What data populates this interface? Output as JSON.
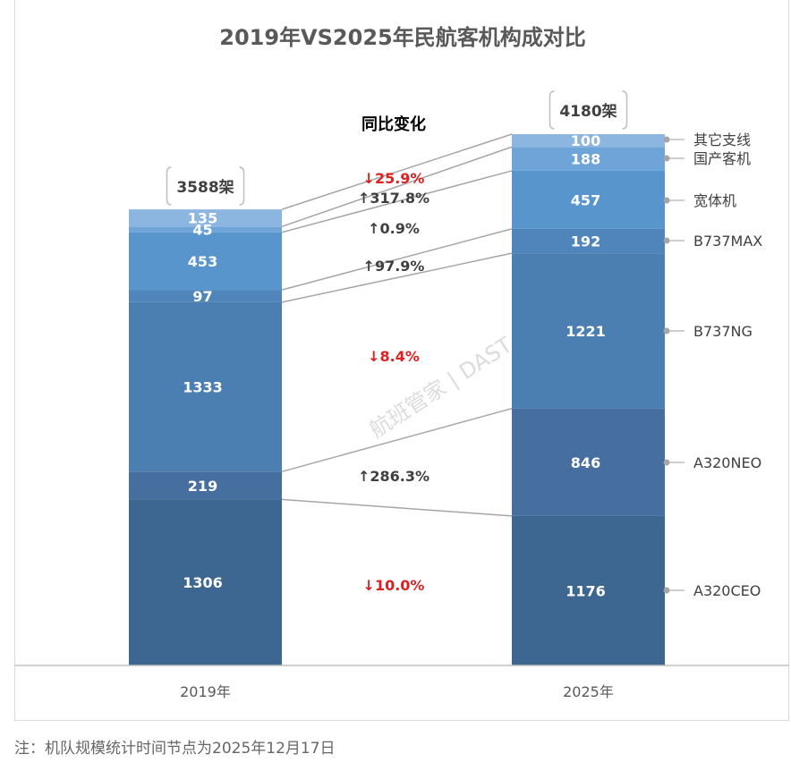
{
  "chart_data": {
    "type": "bar",
    "stacked": true,
    "title": "2019年VS2025年民航客机构成对比",
    "categories": [
      "2019年",
      "2025年"
    ],
    "series": [
      {
        "name": "A320CEO",
        "values": [
          1306,
          1176
        ],
        "change": "↓10.0%",
        "direction": "down"
      },
      {
        "name": "A320NEO",
        "values": [
          219,
          846
        ],
        "change": "↑286.3%",
        "direction": "up"
      },
      {
        "name": "B737NG",
        "values": [
          1333,
          1221
        ],
        "change": "↓8.4%",
        "direction": "down"
      },
      {
        "name": "B737MAX",
        "values": [
          97,
          192
        ],
        "change": "↑97.9%",
        "direction": "up"
      },
      {
        "name": "宽体机",
        "values": [
          453,
          457
        ],
        "change": "↑0.9%",
        "direction": "up"
      },
      {
        "name": "国产客机",
        "values": [
          45,
          188
        ],
        "change": "↑317.8%",
        "direction": "up"
      },
      {
        "name": "其它支线",
        "values": [
          135,
          100
        ],
        "change": "↓25.9%",
        "direction": "down"
      }
    ],
    "totals": [
      "3588架",
      "4180架"
    ],
    "change_heading": "同比变化",
    "legend_position": "right",
    "grid": false,
    "ylim": [
      0,
      4180
    ]
  },
  "colors": {
    "segments": [
      "#3d6690",
      "#466f9f",
      "#4b7eb1",
      "#4f85bb",
      "#5895cd",
      "#6fa4d8",
      "#8cb5e0"
    ],
    "up_text": "#404040",
    "down_text": "#e02020",
    "connector": "#a6a6a6",
    "title": "#595959"
  },
  "watermark": "航班管家 | DAST",
  "footnote": "注：机队规模统计时间节点为2025年12月17日"
}
